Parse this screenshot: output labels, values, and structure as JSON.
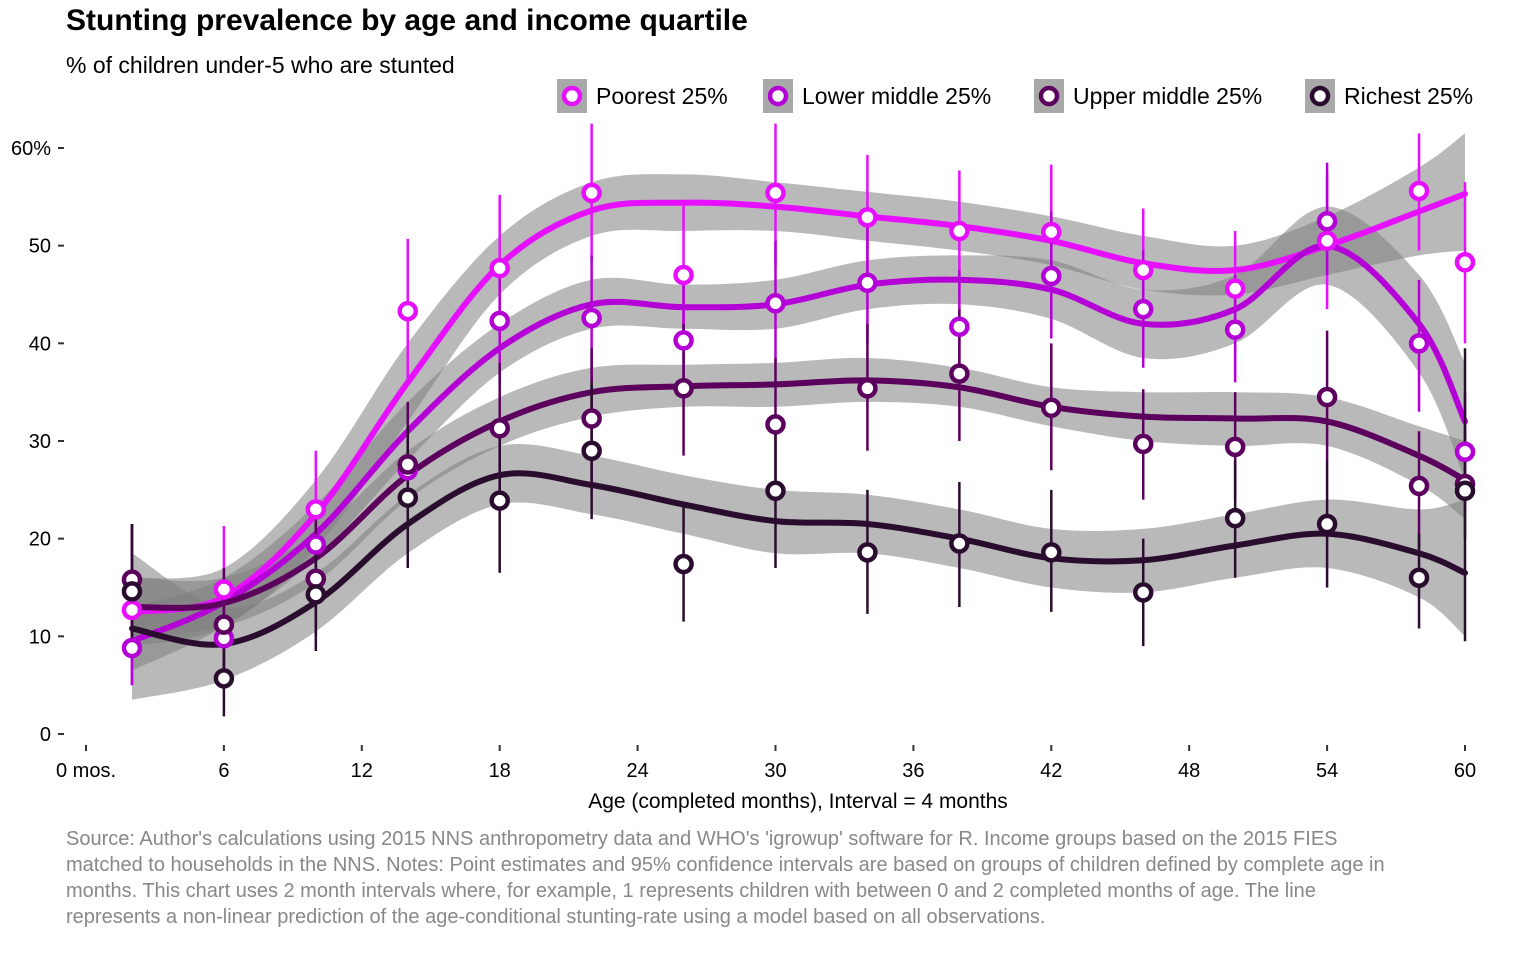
{
  "chart_data": {
    "type": "scatter",
    "title": "Stunting prevalence by age and income quartile",
    "subtitle": "% of children under-5 who are stunted",
    "xlabel": "Age (completed months), Interval = 4 months",
    "ylabel": "",
    "caption": "Source: Author's calculations using 2015 NNS anthropometry data and WHO's 'igrowup' software for R. Income groups based on the 2015 FIES matched to households in the NNS. Notes: Point estimates and 95% confidence intervals are based on groups of children defined by complete age in months. This chart uses 2 month intervals where, for example, 1 represents children with between 0 and 2 completed months of age. The line represents a non-linear prediction of the age-conditional stunting-rate using a model based on all observations.",
    "xlim": [
      0,
      60
    ],
    "ylim": [
      0,
      60
    ],
    "x_ticks": [
      0,
      6,
      12,
      18,
      24,
      30,
      36,
      42,
      48,
      54,
      60
    ],
    "x_tick_labels": [
      "0 mos.",
      "6",
      "12",
      "18",
      "24",
      "30",
      "36",
      "42",
      "48",
      "54",
      "60"
    ],
    "y_ticks": [
      0,
      10,
      20,
      30,
      40,
      50,
      60
    ],
    "y_tick_labels": [
      "0",
      "10",
      "20",
      "30",
      "40",
      "50",
      "60%"
    ],
    "grid": false,
    "legend_position": "top-right",
    "x": [
      2,
      6,
      10,
      14,
      18,
      22,
      26,
      30,
      34,
      38,
      42,
      46,
      50,
      54,
      58,
      60
    ],
    "series": [
      {
        "name": "Poorest 25%",
        "color": "#e60fff",
        "values": [
          12.7,
          14.8,
          23,
          43.3,
          47.7,
          55.4,
          47,
          55.4,
          52.9,
          51.5,
          51.4,
          47.5,
          45.6,
          50.5,
          55.6,
          48.3
        ],
        "lower": [
          5,
          8.5,
          17,
          36,
          40.5,
          48.5,
          40,
          48,
          46.5,
          45,
          44.5,
          41.5,
          39,
          43.5,
          49.5,
          40
        ],
        "upper": [
          21.5,
          21.3,
          29,
          50.7,
          55.2,
          62.5,
          54.5,
          62.5,
          59.3,
          57.7,
          58.3,
          53.8,
          51.5,
          57.5,
          61.5,
          56.5
        ],
        "smooth": [
          12.5,
          14,
          22.5,
          36,
          48,
          53.6,
          54.4,
          54,
          53,
          52,
          50.5,
          48.2,
          47.5,
          50,
          53.5,
          55.3
        ],
        "smooth_lower": [
          9,
          11,
          19,
          32,
          45,
          51,
          51.5,
          51.5,
          50.5,
          49.5,
          48,
          45.5,
          45,
          47,
          49,
          49.5
        ],
        "smooth_upper": [
          16,
          17,
          26,
          40,
          51,
          56.5,
          57.3,
          56.5,
          55.5,
          54.5,
          53,
          51,
          50,
          53,
          58,
          61.5
        ]
      },
      {
        "name": "Lower middle 25%",
        "color": "#b400d6",
        "values": [
          8.8,
          9.8,
          19.4,
          27,
          42.3,
          42.6,
          40.3,
          44.1,
          46.2,
          41.7,
          46.9,
          43.5,
          41.4,
          52.5,
          40,
          28.9
        ],
        "lower": [
          5,
          6.5,
          15,
          22,
          36,
          36,
          34,
          38,
          40,
          36,
          40.5,
          37.5,
          36,
          47,
          33,
          23
        ],
        "upper": [
          12.5,
          13.5,
          23.5,
          32,
          48.5,
          49,
          46.5,
          50.5,
          52.5,
          47.5,
          53.5,
          49.5,
          47,
          58.5,
          46.5,
          35
        ],
        "smooth": [
          9.5,
          13.5,
          20.5,
          31,
          39.5,
          44,
          43.7,
          44,
          46,
          46.5,
          45.5,
          42,
          43.5,
          50,
          42,
          32
        ],
        "smooth_lower": [
          6.5,
          11,
          18,
          28,
          37,
          41.5,
          41.5,
          41.5,
          43.5,
          44,
          42.5,
          38.5,
          40,
          46,
          37,
          26
        ],
        "smooth_upper": [
          13,
          16,
          23.5,
          34,
          42,
          46.5,
          46,
          46.5,
          48.5,
          49,
          48.5,
          45.5,
          47,
          54,
          47,
          38
        ]
      },
      {
        "name": "Upper middle 25%",
        "color": "#5c005e",
        "values": [
          15.8,
          11.2,
          15.9,
          27.6,
          31.3,
          32.3,
          35.4,
          31.7,
          35.4,
          36.9,
          33.4,
          29.7,
          29.4,
          34.5,
          25.4,
          25.6
        ],
        "lower": [
          10,
          5.5,
          10,
          21,
          24.5,
          25,
          28.5,
          25,
          29,
          30,
          27,
          24,
          24,
          28,
          19,
          20
        ],
        "upper": [
          21.5,
          17,
          22,
          34,
          38,
          39.5,
          42,
          38.5,
          42,
          43.5,
          40,
          35.3,
          35,
          41.3,
          31,
          31.5
        ],
        "smooth": [
          13,
          13.4,
          18,
          26.5,
          32,
          35,
          35.6,
          35.8,
          36.2,
          35.5,
          33.5,
          32.5,
          32.3,
          32,
          28.5,
          26
        ],
        "smooth_lower": [
          10,
          11,
          15.5,
          24,
          29.5,
          32.5,
          33.5,
          33.5,
          34,
          33.5,
          31.5,
          30,
          29.5,
          29.5,
          25.5,
          22
        ],
        "smooth_upper": [
          16,
          16,
          20.5,
          29,
          34.5,
          37.5,
          37.8,
          38,
          38.5,
          37.5,
          35.5,
          35,
          35,
          34.5,
          31.5,
          30
        ]
      },
      {
        "name": "Richest 25%",
        "color": "#2a0c2e",
        "values": [
          14.6,
          5.7,
          14.3,
          24.2,
          23.9,
          29,
          17.4,
          24.9,
          18.6,
          19.5,
          18.6,
          14.5,
          22.1,
          21.5,
          16,
          24.9
        ],
        "lower": [
          8.5,
          1.8,
          8.5,
          17,
          16.5,
          22,
          11.5,
          17,
          12.3,
          13,
          12.5,
          9,
          16,
          15,
          10.8,
          9.5
        ],
        "upper": [
          21.5,
          10,
          20,
          31.5,
          31.5,
          36,
          23.5,
          32.5,
          25,
          25.8,
          25,
          20,
          28,
          28,
          20.5,
          39.5
        ],
        "smooth": [
          10.8,
          9.2,
          13.5,
          21.5,
          26.5,
          25.5,
          23.5,
          21.8,
          21.5,
          20,
          18,
          17.8,
          19.3,
          20.5,
          18.5,
          16.5
        ],
        "smooth_lower": [
          3.5,
          5.5,
          10.5,
          18.5,
          23.5,
          22.5,
          20.5,
          18.5,
          18.5,
          17,
          15,
          14.5,
          16,
          17,
          14,
          10
        ],
        "smooth_upper": [
          18.5,
          13,
          16.5,
          24.5,
          29.5,
          28.5,
          26.5,
          25,
          24.5,
          23,
          21,
          21,
          22.5,
          24,
          23,
          24
        ]
      }
    ]
  }
}
